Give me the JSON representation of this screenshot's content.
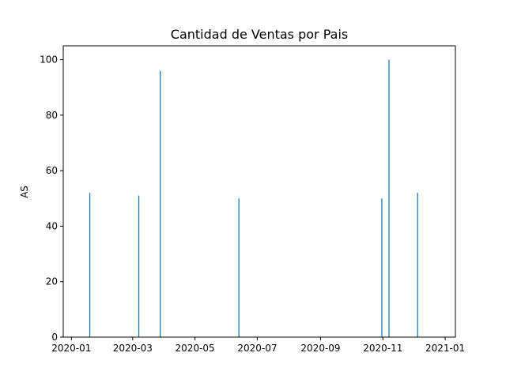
{
  "chart_data": {
    "type": "bar",
    "title": "Cantidad de Ventas por Pais",
    "xlabel": "",
    "ylabel": "AS",
    "bar_color": "#1f77b4",
    "x_type": "date",
    "xlim": [
      "2019-12-24",
      "2021-01-11"
    ],
    "ylim": [
      0,
      105
    ],
    "x_ticks": [
      "2020-01-01",
      "2020-03-01",
      "2020-05-01",
      "2020-07-01",
      "2020-09-01",
      "2020-11-01",
      "2021-01-01"
    ],
    "x_tick_labels": [
      "2020-01",
      "2020-03",
      "2020-05",
      "2020-07",
      "2020-09",
      "2020-11",
      "2021-01"
    ],
    "y_ticks": [
      0,
      20,
      40,
      60,
      80,
      100
    ],
    "y_tick_labels": [
      "0",
      "20",
      "40",
      "60",
      "80",
      "100"
    ],
    "grid": false,
    "x": [
      "2020-01-19",
      "2020-03-07",
      "2020-03-28",
      "2020-06-13",
      "2020-10-31",
      "2020-11-07",
      "2020-12-05"
    ],
    "values": [
      52,
      51,
      96,
      50,
      50,
      100,
      52
    ]
  }
}
